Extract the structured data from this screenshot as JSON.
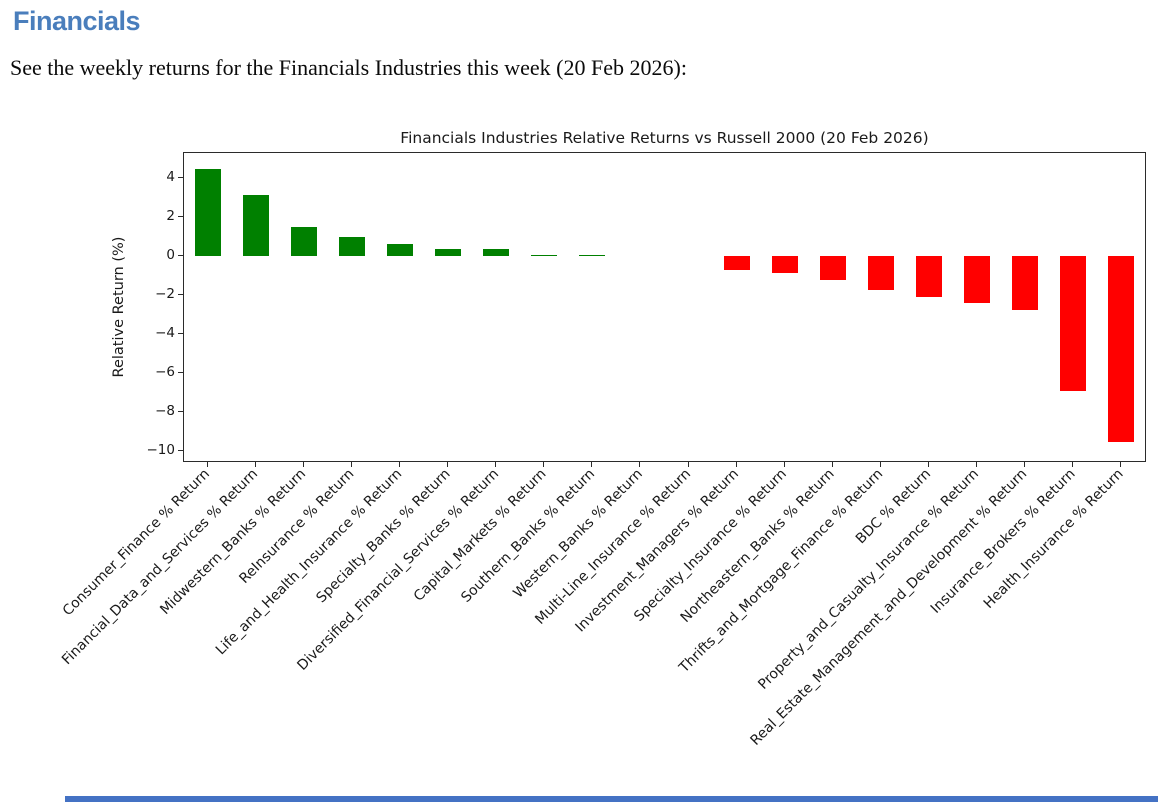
{
  "page": {
    "heading": "Financials",
    "heading_color": "#4a7ebc",
    "description": "See the weekly returns for the Financials Industries this week (20 Feb 2026):",
    "accent_bar_color": "#4472c4"
  },
  "chart_data": {
    "type": "bar",
    "title": "Financials Industries Relative Returns vs Russell 2000 (20 Feb 2026)",
    "xlabel": "",
    "ylabel": "Relative Return (%)",
    "ylim": [
      -10.5,
      5.3
    ],
    "yticks": [
      4,
      2,
      0,
      -2,
      -4,
      -6,
      -8,
      -10
    ],
    "ytick_labels": [
      "4",
      "2",
      "0",
      "−2",
      "−4",
      "−6",
      "−8",
      "−10"
    ],
    "grid": false,
    "legend": "none",
    "positive_color": "#008000",
    "negative_color": "#ff0000",
    "categories": [
      "Consumer_Finance % Return",
      "Financial_Data_and_Services % Return",
      "Midwestern_Banks % Return",
      "ReInsurance % Return",
      "Life_and_Health_Insurance % Return",
      "Specialty_Banks % Return",
      "Diversified_Financial_Services % Return",
      "Capital_Markets % Return",
      "Southern_Banks % Return",
      "Western_Banks % Return",
      "Multi-Line_Insurance % Return",
      "Investment_Managers % Return",
      "Specialty_Insurance % Return",
      "Northeastern_Banks % Return",
      "Thrifts_and_Mortgage_Finance % Return",
      "BDC % Return",
      "Property_and_Casualty_Insurance % Return",
      "Real_Estate_Management_and_Development % Return",
      "Insurance_Brokers % Return",
      "Health_Insurance % Return"
    ],
    "values": [
      4.5,
      3.15,
      1.5,
      1.0,
      0.65,
      0.4,
      0.35,
      0.05,
      0.05,
      0.0,
      0.0,
      -0.7,
      -0.85,
      -1.2,
      -1.75,
      -2.1,
      -2.4,
      -2.75,
      -6.9,
      -9.55
    ]
  }
}
